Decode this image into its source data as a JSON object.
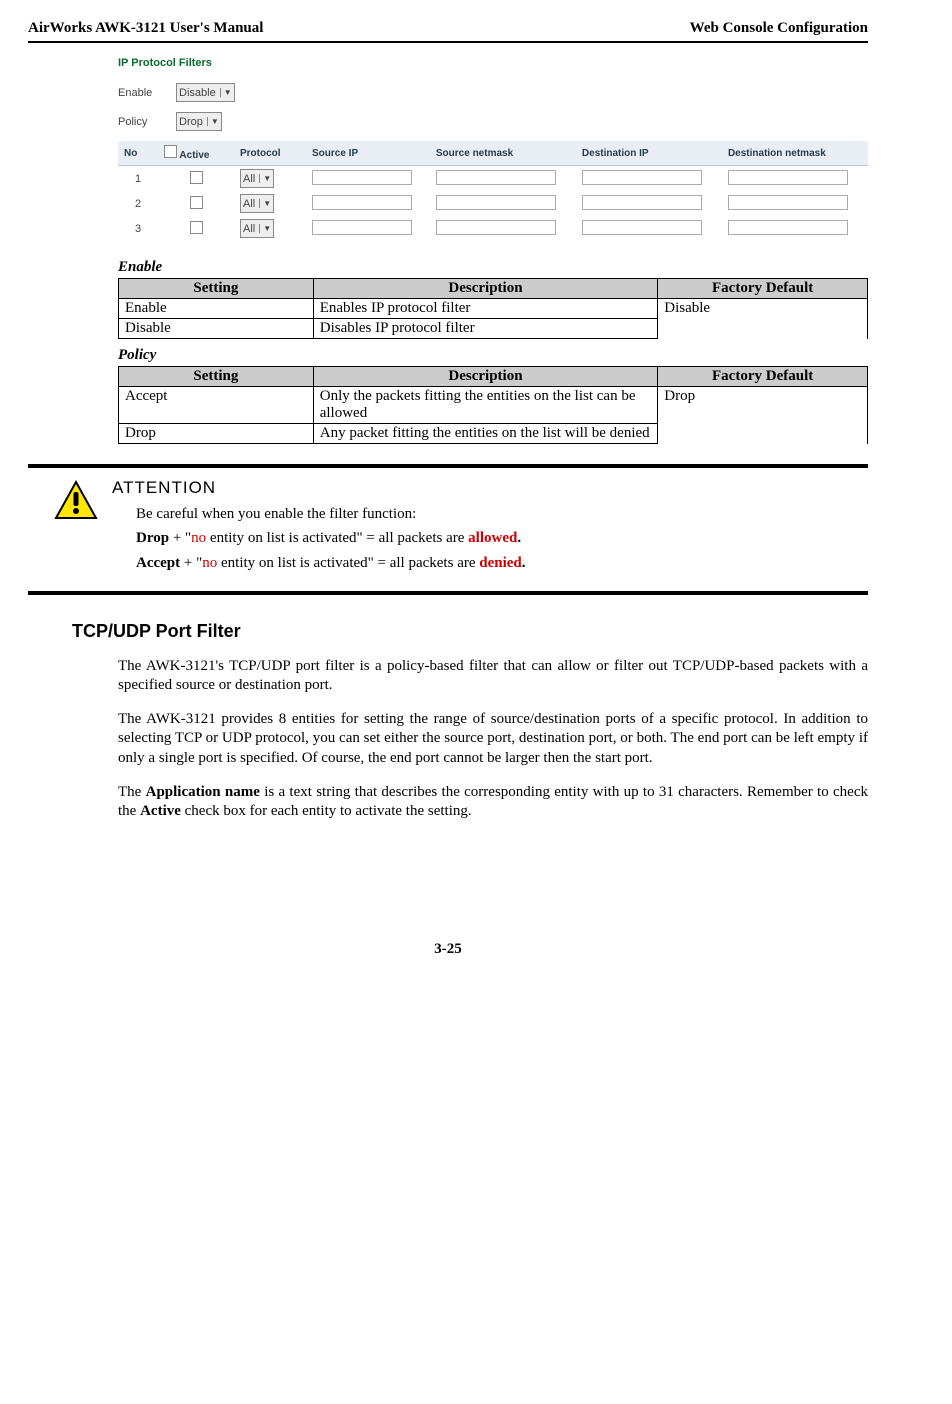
{
  "header": {
    "left": "AirWorks AWK-3121 User's Manual",
    "right": "Web Console Configuration"
  },
  "uiShot": {
    "title": "IP Protocol Filters",
    "enableLabel": "Enable",
    "enableValue": "Disable",
    "policyLabel": "Policy",
    "policyValue": "Drop",
    "cols": {
      "no": "No",
      "active": "Active",
      "protocol": "Protocol",
      "srcIp": "Source IP",
      "srcMask": "Source netmask",
      "dstIp": "Destination IP",
      "dstMask": "Destination netmask"
    },
    "rows": [
      {
        "no": "1",
        "proto": "All"
      },
      {
        "no": "2",
        "proto": "All"
      },
      {
        "no": "3",
        "proto": "All"
      }
    ]
  },
  "enableSection": {
    "label": "Enable",
    "headers": {
      "setting": "Setting",
      "desc": "Description",
      "def": "Factory Default"
    },
    "rows": [
      {
        "setting": "Enable",
        "desc": "Enables IP protocol filter"
      },
      {
        "setting": "Disable",
        "desc": "Disables IP protocol filter"
      }
    ],
    "default": "Disable"
  },
  "policySection": {
    "label": "Policy",
    "headers": {
      "setting": "Setting",
      "desc": "Description",
      "def": "Factory Default"
    },
    "rows": [
      {
        "setting": "Accept",
        "desc": "Only the packets fitting the entities on the list can be allowed"
      },
      {
        "setting": "Drop",
        "desc": "Any packet fitting the entities on the list will be denied"
      }
    ],
    "default": "Drop"
  },
  "attention": {
    "title": "ATTENTION",
    "line1": "Be careful when you enable the filter function:",
    "line2a": "Drop",
    "line2b": " + \"",
    "line2c": "no",
    "line2d": " entity on list is activated\" = all packets are ",
    "line2e": "allowed",
    "line2f": ".",
    "line3a": "Accept",
    "line3b": " + \"",
    "line3c": "no",
    "line3d": " entity on list is activated\" = all packets are ",
    "line3e": "denied",
    "line3f": "."
  },
  "tcpudp": {
    "heading": "TCP/UDP Port Filter",
    "p1": "The AWK-3121's TCP/UDP port filter is a policy-based filter that can allow or filter out TCP/UDP-based packets with a specified source or destination port.",
    "p2": "The AWK-3121 provides 8 entities for setting the range of source/destination ports of a specific protocol. In addition to selecting TCP or UDP protocol, you can set either the source port, destination port, or both. The end port can be left empty if only a single port is specified. Of course, the end port cannot be larger then the start port.",
    "p3a": "The ",
    "p3b": "Application name",
    "p3c": " is a text string that describes the corresponding entity with up to 31 characters. Remember to check the ",
    "p3d": "Active",
    "p3e": " check box for each entity to activate the setting."
  },
  "pageNum": "3-25",
  "colWidths": {
    "setting": "26%",
    "desc": "46%",
    "def": "28%"
  }
}
